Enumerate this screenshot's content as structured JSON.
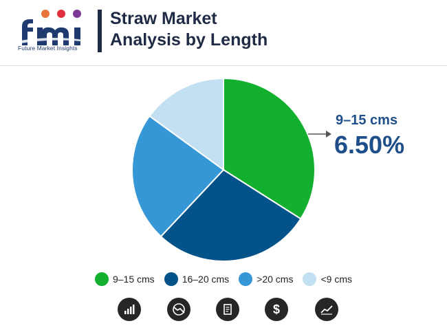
{
  "header": {
    "logo_tagline": "Future Market Insights",
    "title_line1": "Straw Market",
    "title_line2": "Analysis by Length"
  },
  "callout": {
    "label": "9–15 cms",
    "value": "6.50%"
  },
  "chart_data": {
    "type": "pie",
    "title": "Straw Market Analysis by Length",
    "slices": [
      {
        "label": "9–15 cms",
        "value": 34,
        "color": "#12b02e"
      },
      {
        "label": "16–20 cms",
        "value": 28,
        "color": "#03528a"
      },
      {
        "label": ">20 cms",
        "value": 23,
        "color": "#3697d6"
      },
      {
        "label": "<9 cms",
        "value": 15,
        "color": "#c3e0f2"
      }
    ],
    "legend_position": "bottom"
  },
  "footer_icons": [
    "bar-chart-icon",
    "trend-down-icon",
    "document-icon",
    "dollar-icon",
    "trend-up-icon"
  ]
}
